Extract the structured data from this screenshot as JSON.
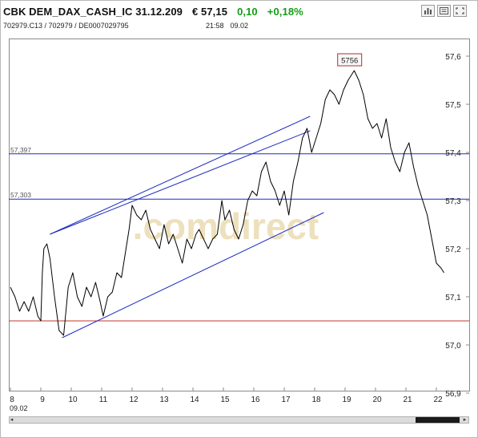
{
  "header": {
    "symbol": "CBK DEM_DAX_CASH_IC 31.12.209",
    "price": "€ 57,15",
    "change": "0,10",
    "change_pct": "+0,18%",
    "identifiers": "702979.C13  /  702979  /  DE0007029795",
    "time": "21:58",
    "date": "09.02"
  },
  "toolbar": {
    "buttons": [
      {
        "name": "bar-chart-icon"
      },
      {
        "name": "news-icon"
      },
      {
        "name": "fullscreen-icon"
      }
    ]
  },
  "colors": {
    "price_line": "#000000",
    "trend_lines": "#1c2bbf",
    "support_line": "#c0392b",
    "watermark": "#e8d6a8",
    "positive": "#169b16"
  },
  "chart_data": {
    "type": "line",
    "title": "",
    "xlabel": "",
    "ylabel": "",
    "x_ticks": [
      "8",
      "9",
      "10",
      "11",
      "12",
      "13",
      "14",
      "15",
      "16",
      "17",
      "18",
      "19",
      "20",
      "21",
      "22"
    ],
    "x_date_label": "09.02",
    "y_ticks": [
      "56,9",
      "57,0",
      "57,1",
      "57,2",
      "57,3",
      "57,4",
      "57,5",
      "57,6"
    ],
    "xlim": [
      8.0,
      22.3
    ],
    "ylim": [
      56.9,
      57.625
    ],
    "grid": false,
    "watermark": ".comdirect",
    "series": [
      {
        "x": [
          8.0,
          8.15,
          8.3,
          8.45,
          8.6,
          8.75,
          8.9,
          9.0,
          9.05,
          9.1,
          9.2,
          9.3,
          9.45,
          9.6,
          9.75,
          9.9,
          10.05,
          10.2,
          10.35,
          10.5,
          10.65,
          10.8,
          10.95,
          11.05,
          11.2,
          11.35,
          11.5,
          11.65,
          11.8,
          11.9,
          12.0,
          12.15,
          12.3,
          12.45,
          12.6,
          12.75,
          12.9,
          13.05,
          13.2,
          13.35,
          13.5,
          13.65,
          13.8,
          13.95,
          14.1,
          14.2,
          14.35,
          14.5,
          14.65,
          14.8,
          14.95,
          15.05,
          15.2,
          15.35,
          15.5,
          15.65,
          15.8,
          15.95,
          16.1,
          16.25,
          16.4,
          16.55,
          16.7,
          16.85,
          17.0,
          17.15,
          17.3,
          17.45,
          17.6,
          17.75,
          17.9,
          18.05,
          18.2,
          18.35,
          18.5,
          18.65,
          18.8,
          18.95,
          19.1,
          19.2,
          19.3,
          19.45,
          19.6,
          19.75,
          19.9,
          20.05,
          20.2,
          20.35,
          20.5,
          20.65,
          20.8,
          20.95,
          21.1,
          21.25,
          21.4,
          21.55,
          21.7,
          21.85,
          22.0,
          22.15,
          22.25
        ],
        "values": [
          57.12,
          57.1,
          57.07,
          57.09,
          57.07,
          57.1,
          57.06,
          57.05,
          57.15,
          57.2,
          57.21,
          57.18,
          57.1,
          57.03,
          57.02,
          57.12,
          57.15,
          57.1,
          57.08,
          57.12,
          57.1,
          57.13,
          57.09,
          57.06,
          57.1,
          57.11,
          57.15,
          57.14,
          57.2,
          57.24,
          57.29,
          57.27,
          57.26,
          57.28,
          57.24,
          57.22,
          57.2,
          57.25,
          57.21,
          57.23,
          57.2,
          57.17,
          57.22,
          57.2,
          57.23,
          57.24,
          57.22,
          57.2,
          57.22,
          57.23,
          57.3,
          57.26,
          57.28,
          57.24,
          57.22,
          57.25,
          57.3,
          57.32,
          57.31,
          57.36,
          57.38,
          57.34,
          57.32,
          57.29,
          57.32,
          57.27,
          57.34,
          57.38,
          57.43,
          57.45,
          57.4,
          57.43,
          57.46,
          57.51,
          57.53,
          57.52,
          57.5,
          57.53,
          57.55,
          57.56,
          57.57,
          57.55,
          57.52,
          57.47,
          57.45,
          57.46,
          57.43,
          57.47,
          57.41,
          57.38,
          57.36,
          57.4,
          57.42,
          57.37,
          57.33,
          57.3,
          57.27,
          57.22,
          57.17,
          57.16,
          57.15
        ]
      }
    ],
    "horizontal_lines": [
      {
        "value": 57.397,
        "label": "57,397",
        "color": "#1c2bbf"
      },
      {
        "value": 57.303,
        "label": "57,303",
        "color": "#1c2bbf"
      },
      {
        "value": 57.05,
        "label": "",
        "color": "#c0392b"
      }
    ],
    "trend_lines": [
      {
        "x1": 9.3,
        "y1": 57.23,
        "x2": 17.85,
        "y2": 57.475
      },
      {
        "x1": 9.3,
        "y1": 57.23,
        "x2": 17.85,
        "y2": 57.445
      },
      {
        "x1": 9.7,
        "y1": 57.015,
        "x2": 18.3,
        "y2": 57.275
      }
    ],
    "annotations": [
      {
        "x": 19.15,
        "y": 57.575,
        "text": "5756"
      }
    ]
  }
}
